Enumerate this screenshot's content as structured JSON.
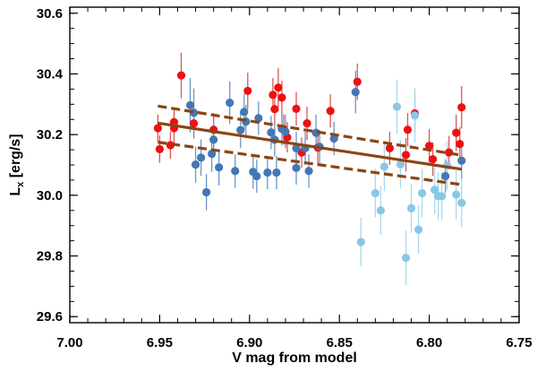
{
  "chart_data": {
    "type": "scatter",
    "title": "",
    "xlabel": "V mag from model",
    "ylabel": {
      "main": "L",
      "sub": "x",
      "suffix": " [erg/s]"
    },
    "xlim": [
      7.0,
      6.75
    ],
    "ylim": [
      29.58,
      30.62
    ],
    "x_ticks": [
      7.0,
      6.95,
      6.9,
      6.85,
      6.8,
      6.75
    ],
    "x_tick_labels": [
      "7.00",
      "6.95",
      "6.90",
      "6.85",
      "6.80",
      "6.75"
    ],
    "y_ticks": [
      29.6,
      29.8,
      30.0,
      30.2,
      30.4,
      30.6
    ],
    "y_tick_labels": [
      "29.6",
      "29.8",
      "30.0",
      "30.2",
      "30.4",
      "30.6"
    ],
    "grid": false,
    "legend": null,
    "series": [
      {
        "name": "red",
        "color": "#ee1111",
        "errcolor": "#dd5555",
        "points": [
          {
            "x": 6.951,
            "y": 30.221,
            "err": 0.045
          },
          {
            "x": 6.95,
            "y": 30.152,
            "err": 0.045
          },
          {
            "x": 6.944,
            "y": 30.165,
            "err": 0.045
          },
          {
            "x": 6.942,
            "y": 30.241,
            "err": 0.045
          },
          {
            "x": 6.942,
            "y": 30.221,
            "err": 0.05
          },
          {
            "x": 6.938,
            "y": 30.395,
            "err": 0.075
          },
          {
            "x": 6.931,
            "y": 30.237,
            "err": 0.05
          },
          {
            "x": 6.92,
            "y": 30.216,
            "err": 0.055
          },
          {
            "x": 6.901,
            "y": 30.344,
            "err": 0.06
          },
          {
            "x": 6.887,
            "y": 30.331,
            "err": 0.055
          },
          {
            "x": 6.886,
            "y": 30.284,
            "err": 0.055
          },
          {
            "x": 6.884,
            "y": 30.355,
            "err": 0.065
          },
          {
            "x": 6.882,
            "y": 30.322,
            "err": 0.055
          },
          {
            "x": 6.881,
            "y": 30.217,
            "err": 0.05
          },
          {
            "x": 6.879,
            "y": 30.191,
            "err": 0.05
          },
          {
            "x": 6.874,
            "y": 30.285,
            "err": 0.055
          },
          {
            "x": 6.871,
            "y": 30.141,
            "err": 0.05
          },
          {
            "x": 6.868,
            "y": 30.237,
            "err": 0.055
          },
          {
            "x": 6.862,
            "y": 30.157,
            "err": 0.055
          },
          {
            "x": 6.855,
            "y": 30.278,
            "err": 0.055
          },
          {
            "x": 6.84,
            "y": 30.374,
            "err": 0.06
          },
          {
            "x": 6.822,
            "y": 30.155,
            "err": 0.055
          },
          {
            "x": 6.813,
            "y": 30.133,
            "err": 0.055
          },
          {
            "x": 6.812,
            "y": 30.216,
            "err": 0.055
          },
          {
            "x": 6.808,
            "y": 30.27,
            "err": 0.06
          },
          {
            "x": 6.8,
            "y": 30.163,
            "err": 0.055
          },
          {
            "x": 6.798,
            "y": 30.119,
            "err": 0.055
          },
          {
            "x": 6.789,
            "y": 30.141,
            "err": 0.055
          },
          {
            "x": 6.785,
            "y": 30.206,
            "err": 0.06
          },
          {
            "x": 6.783,
            "y": 30.169,
            "err": 0.055
          },
          {
            "x": 6.782,
            "y": 30.29,
            "err": 0.07
          }
        ]
      },
      {
        "name": "steel-blue",
        "color": "#4477b3",
        "errcolor": "#6a96c6",
        "points": [
          {
            "x": 6.933,
            "y": 30.297,
            "err": 0.09
          },
          {
            "x": 6.931,
            "y": 30.272,
            "err": 0.08
          },
          {
            "x": 6.93,
            "y": 30.101,
            "err": 0.06
          },
          {
            "x": 6.927,
            "y": 30.124,
            "err": 0.06
          },
          {
            "x": 6.924,
            "y": 30.01,
            "err": 0.06
          },
          {
            "x": 6.921,
            "y": 30.137,
            "err": 0.06
          },
          {
            "x": 6.92,
            "y": 30.183,
            "err": 0.06
          },
          {
            "x": 6.917,
            "y": 30.092,
            "err": 0.06
          },
          {
            "x": 6.911,
            "y": 30.305,
            "err": 0.07
          },
          {
            "x": 6.908,
            "y": 30.08,
            "err": 0.055
          },
          {
            "x": 6.905,
            "y": 30.215,
            "err": 0.06
          },
          {
            "x": 6.903,
            "y": 30.275,
            "err": 0.06
          },
          {
            "x": 6.902,
            "y": 30.243,
            "err": 0.055
          },
          {
            "x": 6.898,
            "y": 30.077,
            "err": 0.055
          },
          {
            "x": 6.896,
            "y": 30.063,
            "err": 0.055
          },
          {
            "x": 6.895,
            "y": 30.254,
            "err": 0.055
          },
          {
            "x": 6.89,
            "y": 30.075,
            "err": 0.055
          },
          {
            "x": 6.888,
            "y": 30.207,
            "err": 0.055
          },
          {
            "x": 6.886,
            "y": 30.183,
            "err": 0.055
          },
          {
            "x": 6.885,
            "y": 30.075,
            "err": 0.055
          },
          {
            "x": 6.882,
            "y": 30.219,
            "err": 0.055
          },
          {
            "x": 6.88,
            "y": 30.21,
            "err": 0.055
          },
          {
            "x": 6.874,
            "y": 30.155,
            "err": 0.055
          },
          {
            "x": 6.874,
            "y": 30.09,
            "err": 0.055
          },
          {
            "x": 6.869,
            "y": 30.155,
            "err": 0.055
          },
          {
            "x": 6.867,
            "y": 30.08,
            "err": 0.055
          },
          {
            "x": 6.863,
            "y": 30.206,
            "err": 0.06
          },
          {
            "x": 6.861,
            "y": 30.16,
            "err": 0.055
          },
          {
            "x": 6.853,
            "y": 30.187,
            "err": 0.055
          },
          {
            "x": 6.841,
            "y": 30.34,
            "err": 0.07
          },
          {
            "x": 6.791,
            "y": 30.063,
            "err": 0.055
          },
          {
            "x": 6.782,
            "y": 30.114,
            "err": 0.06
          }
        ]
      },
      {
        "name": "light-blue",
        "color": "#88c8e6",
        "errcolor": "#a9d8ee",
        "points": [
          {
            "x": 6.838,
            "y": 29.846,
            "err": 0.08
          },
          {
            "x": 6.83,
            "y": 30.007,
            "err": 0.08
          },
          {
            "x": 6.827,
            "y": 29.95,
            "err": 0.08
          },
          {
            "x": 6.825,
            "y": 30.094,
            "err": 0.08
          },
          {
            "x": 6.818,
            "y": 30.292,
            "err": 0.09
          },
          {
            "x": 6.816,
            "y": 30.102,
            "err": 0.08
          },
          {
            "x": 6.813,
            "y": 29.794,
            "err": 0.09
          },
          {
            "x": 6.81,
            "y": 29.957,
            "err": 0.08
          },
          {
            "x": 6.808,
            "y": 30.263,
            "err": 0.09
          },
          {
            "x": 6.806,
            "y": 29.887,
            "err": 0.08
          },
          {
            "x": 6.804,
            "y": 30.007,
            "err": 0.08
          },
          {
            "x": 6.797,
            "y": 30.018,
            "err": 0.08
          },
          {
            "x": 6.795,
            "y": 29.997,
            "err": 0.08
          },
          {
            "x": 6.793,
            "y": 29.997,
            "err": 0.08
          },
          {
            "x": 6.79,
            "y": 30.098,
            "err": 0.08
          },
          {
            "x": 6.785,
            "y": 30.002,
            "err": 0.08
          },
          {
            "x": 6.782,
            "y": 29.975,
            "err": 0.08
          }
        ]
      }
    ],
    "lines": [
      {
        "name": "best-fit",
        "style": "solid",
        "color": "#8b4513",
        "x": [
          6.951,
          6.782
        ],
        "y": [
          30.238,
          30.086
        ]
      },
      {
        "name": "upper-bound",
        "style": "dashed",
        "color": "#8b4513",
        "x": [
          6.951,
          6.782
        ],
        "y": [
          30.294,
          30.132
        ]
      },
      {
        "name": "lower-bound",
        "style": "dashed",
        "color": "#8b4513",
        "x": [
          6.951,
          6.782
        ],
        "y": [
          30.175,
          30.035
        ]
      }
    ]
  }
}
